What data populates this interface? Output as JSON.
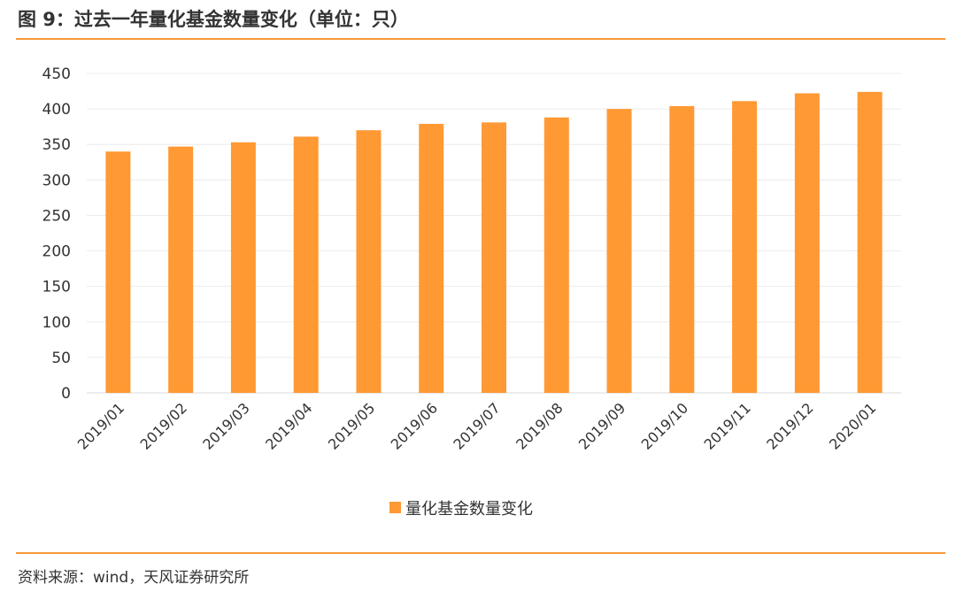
{
  "figure": {
    "title": "图 9：过去一年量化基金数量变化（单位：只）",
    "source": "资料来源：wind，天风证券研究所",
    "accent_color": "#F39A3A",
    "bar_color": "#FF9933"
  },
  "chart_data": {
    "type": "bar",
    "title": "",
    "xlabel": "",
    "ylabel": "",
    "categories": [
      "2019/01",
      "2019/02",
      "2019/03",
      "2019/04",
      "2019/05",
      "2019/06",
      "2019/07",
      "2019/08",
      "2019/09",
      "2019/10",
      "2019/11",
      "2019/12",
      "2020/01"
    ],
    "series": [
      {
        "name": "量化基金数量变化",
        "values": [
          340,
          347,
          353,
          361,
          370,
          379,
          381,
          388,
          400,
          404,
          411,
          422,
          424
        ]
      }
    ],
    "ylim": [
      0,
      450
    ],
    "yticks": [
      0,
      50,
      100,
      150,
      200,
      250,
      300,
      350,
      400,
      450
    ],
    "grid": true,
    "legend_position": "bottom-center"
  }
}
